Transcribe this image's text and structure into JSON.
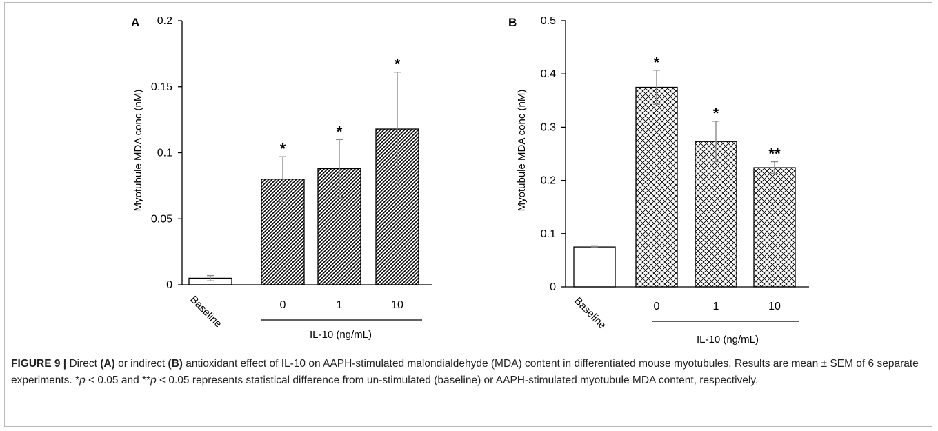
{
  "chart_data": [
    {
      "panel": "A",
      "type": "bar",
      "categories": [
        "Baseline",
        "0",
        "1",
        "10"
      ],
      "values": [
        0.005,
        0.08,
        0.088,
        0.118
      ],
      "errors": [
        0.002,
        0.017,
        0.022,
        0.043
      ],
      "significance": [
        "",
        "*",
        "*",
        "*"
      ],
      "patterns": [
        "none",
        "diagonal-hatch",
        "diagonal-hatch",
        "diagonal-hatch"
      ],
      "ylabel": "Myotubule MDA conc (nM)",
      "xgroup_label": "IL-10 (ng/mL)",
      "ylim": [
        0,
        0.2
      ],
      "yticks": [
        "0",
        "0.05",
        "0.1",
        "0.15",
        "0.2"
      ],
      "grid": false
    },
    {
      "panel": "B",
      "type": "bar",
      "categories": [
        "Baseline",
        "0",
        "1",
        "10"
      ],
      "values": [
        0.075,
        0.375,
        0.273,
        0.224
      ],
      "errors": [
        0.001,
        0.032,
        0.038,
        0.011
      ],
      "significance": [
        "",
        "*",
        "*",
        "**"
      ],
      "patterns": [
        "none",
        "crosshatch",
        "crosshatch",
        "crosshatch"
      ],
      "ylabel": "Myotubule MDA conc (nM)",
      "xgroup_label": "IL-10 (ng/mL)",
      "ylim": [
        0,
        0.5
      ],
      "yticks": [
        "0",
        "0.1",
        "0.2",
        "0.3",
        "0.4",
        "0.5"
      ],
      "grid": false
    }
  ],
  "colors": {
    "bar_stroke": "#000000",
    "error_bar": "#8c8c8c",
    "frame_border": "#b9b9b9"
  },
  "caption": {
    "figure_label": "FIGURE 9 |",
    "seg1": " Direct ",
    "bold1": "(A)",
    "seg2": " or indirect ",
    "bold2": "(B)",
    "seg3": " antioxidant effect of IL-10 on AAPH-stimulated malondialdehyde (MDA) content in differentiated mouse myotubules. Results are mean ± SEM of 6 separate experiments. *",
    "p1": "p",
    "seg4": " < 0.05 and **",
    "p2": "p",
    "seg5": " < 0.05 represents statistical difference from un-stimulated (baseline) or AAPH-stimulated myotubule MDA content, respectively."
  }
}
